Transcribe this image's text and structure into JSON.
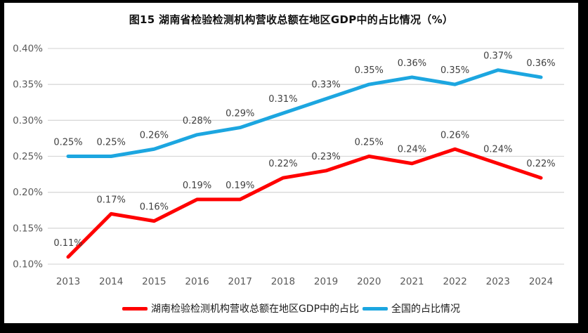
{
  "title": "图15 湖南省检验检测机构营收总额在地区GDP中的占比情况（%）",
  "frame": {
    "border_color": "#000000",
    "canvas_background": "#ffffff"
  },
  "chart_data": {
    "type": "line",
    "title": "图15 湖南省检验检测机构营收总额在地区GDP中的占比情况（%）",
    "categories": [
      "2013",
      "2014",
      "2015",
      "2016",
      "2017",
      "2018",
      "2019",
      "2020",
      "2021",
      "2022",
      "2023",
      "2024"
    ],
    "series": [
      {
        "name": "湖南检验检测机构营收总额在地区GDP中的占比",
        "color": "#FF0000",
        "values": [
          0.11,
          0.17,
          0.16,
          0.19,
          0.19,
          0.22,
          0.23,
          0.25,
          0.24,
          0.26,
          0.24,
          0.22
        ],
        "labels": [
          "0.11%",
          "0.17%",
          "0.16%",
          "0.19%",
          "0.19%",
          "0.22%",
          "0.23%",
          "0.25%",
          "0.24%",
          "0.26%",
          "0.24%",
          "0.22%"
        ]
      },
      {
        "name": "全国的占比情况",
        "color": "#1CA6E0",
        "values": [
          0.25,
          0.25,
          0.26,
          0.28,
          0.29,
          0.31,
          0.33,
          0.35,
          0.36,
          0.35,
          0.37,
          0.36
        ],
        "labels": [
          "0.25%",
          "0.25%",
          "0.26%",
          "0.28%",
          "0.29%",
          "0.31%",
          "0.33%",
          "0.35%",
          "0.36%",
          "0.35%",
          "0.37%",
          "0.36%"
        ]
      }
    ],
    "xlabel": "",
    "ylabel": "",
    "ylim": [
      0.1,
      0.4
    ],
    "y_ticks": [
      {
        "value": 0.4,
        "label": "0.40%"
      },
      {
        "value": 0.35,
        "label": "0.35%"
      },
      {
        "value": 0.3,
        "label": "0.30%"
      },
      {
        "value": 0.25,
        "label": "0.25%"
      },
      {
        "value": 0.2,
        "label": "0.20%"
      },
      {
        "value": 0.15,
        "label": "0.15%"
      },
      {
        "value": 0.1,
        "label": "0.10%"
      }
    ],
    "grid": true,
    "legend_position": "bottom",
    "gridline_color": "#D9D9D9",
    "axis_label_color": "#595959",
    "data_label_color": "#404040"
  }
}
